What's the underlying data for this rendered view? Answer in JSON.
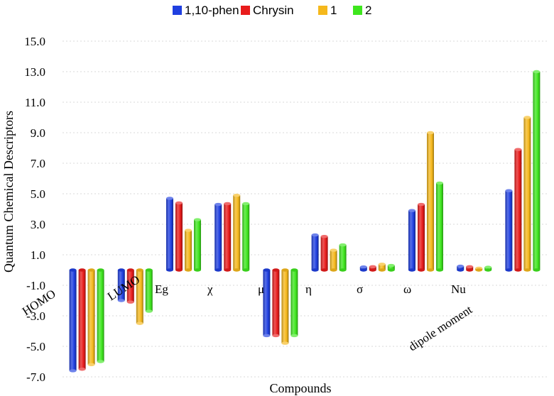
{
  "chart_data": {
    "type": "bar",
    "title": "",
    "xlabel": "Compounds",
    "ylabel": "Quantum Chemical Descriptors",
    "ylim": [
      -7.0,
      15.0
    ],
    "ytick_step": 2.0,
    "yticks": [
      "-7.0",
      "-5.0",
      "-3.0",
      "-1.0",
      "1.0",
      "3.0",
      "5.0",
      "7.0",
      "9.0",
      "11.0",
      "13.0",
      "15.0"
    ],
    "grid": true,
    "legend_position": "top",
    "categories": [
      "HOMO",
      "LUMO",
      "Eg",
      "χ",
      "μ",
      "η",
      "σ",
      "ω",
      "Nu",
      "dipole moment"
    ],
    "series": [
      {
        "name": "1,10-phen",
        "color": "#1f3fe0",
        "values": [
          -6.6,
          -2.0,
          4.7,
          4.3,
          -4.3,
          2.3,
          0.2,
          3.9,
          0.25,
          5.2
        ]
      },
      {
        "name": "Chrysin",
        "color": "#e81c1c",
        "values": [
          -6.5,
          -2.1,
          4.4,
          4.35,
          -4.3,
          2.2,
          0.22,
          4.3,
          0.22,
          7.9
        ]
      },
      {
        "name": "1",
        "color": "#f5b81c",
        "values": [
          -6.2,
          -3.5,
          2.6,
          4.9,
          -4.8,
          1.3,
          0.38,
          9.0,
          0.12,
          10.0
        ]
      },
      {
        "name": "2",
        "color": "#3ee61e",
        "values": [
          -6.0,
          -2.7,
          3.3,
          4.35,
          -4.3,
          1.65,
          0.3,
          5.7,
          0.18,
          13.0
        ]
      }
    ]
  }
}
